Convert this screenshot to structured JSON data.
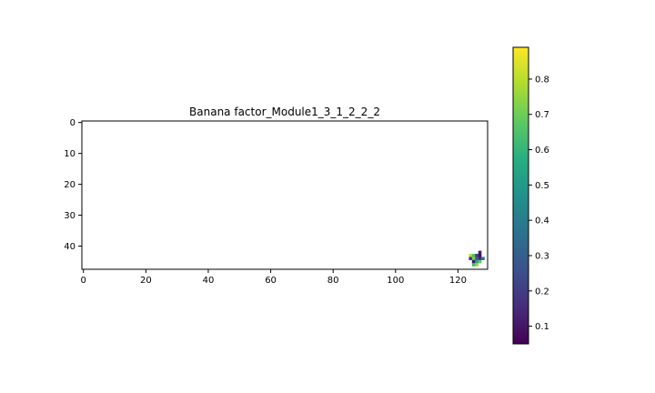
{
  "chart_data": {
    "type": "heatmap",
    "title": "Banana factor_Module1_3_1_2_2_2",
    "xlabel": "",
    "ylabel": "",
    "xlim": [
      -0.5,
      129.5
    ],
    "ylim": [
      47.5,
      -0.5
    ],
    "x_ticks": [
      0,
      20,
      40,
      60,
      80,
      100,
      120
    ],
    "y_ticks": [
      0,
      10,
      20,
      30,
      40
    ],
    "colormap": "viridis",
    "colorbar": {
      "min": 0.05,
      "max": 0.89,
      "ticks": [
        0.1,
        0.2,
        0.3,
        0.4,
        0.5,
        0.6,
        0.7,
        0.8
      ]
    },
    "cells": [
      {
        "x": 127,
        "y": 42,
        "value": 0.12
      },
      {
        "x": 124,
        "y": 43,
        "value": 0.8
      },
      {
        "x": 125,
        "y": 43,
        "value": 0.65
      },
      {
        "x": 126,
        "y": 43,
        "value": 0.22
      },
      {
        "x": 127,
        "y": 43,
        "value": 0.08
      },
      {
        "x": 124,
        "y": 44,
        "value": 0.18
      },
      {
        "x": 125,
        "y": 44,
        "value": 0.72
      },
      {
        "x": 126,
        "y": 44,
        "value": 0.3
      },
      {
        "x": 127,
        "y": 44,
        "value": 0.15
      },
      {
        "x": 128,
        "y": 44,
        "value": 0.38
      },
      {
        "x": 125,
        "y": 45,
        "value": 0.1
      },
      {
        "x": 126,
        "y": 45,
        "value": 0.55
      },
      {
        "x": 127,
        "y": 45,
        "value": 0.68
      },
      {
        "x": 125,
        "y": 46,
        "value": 0.62
      },
      {
        "x": 126,
        "y": 46,
        "value": 0.75
      }
    ]
  }
}
